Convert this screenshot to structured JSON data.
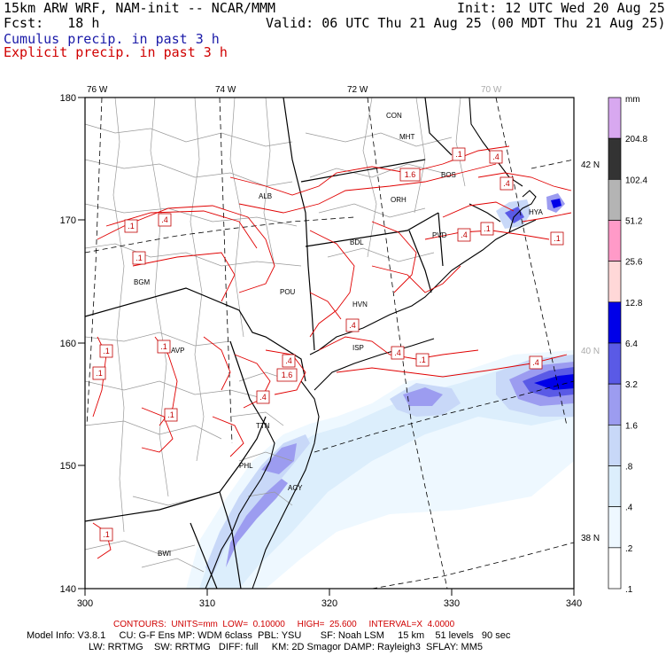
{
  "header": {
    "line1_left": "15km ARW WRF, NAM-init -- NCAR/MMM",
    "line1_right": "Init: 12 UTC Wed 20 Aug 25",
    "line2_left": "Fcst:   18 h",
    "line2_right": "Valid: 06 UTC Thu 21 Aug 25 (00 MDT Thu 21 Aug 25)",
    "line3": "Cumulus precip. in past 3 h",
    "line4": "Explicit precip. in past 3 h"
  },
  "map": {
    "top_lon_labels": [
      "76 W",
      "74 W",
      "72 W",
      "70 W"
    ],
    "right_lat_labels": [
      "42 N",
      "40 N",
      "38 N"
    ],
    "x_ticks": [
      "300",
      "310",
      "320",
      "330",
      "340"
    ],
    "y_ticks": [
      "180",
      "170",
      "160",
      "150",
      "140"
    ],
    "cities": [
      "CON",
      "MHT",
      "BOS",
      "ORH",
      "ALB",
      "BDL",
      "PVD",
      "BGM",
      "POU",
      "HVN",
      "AVP",
      "ISP",
      "TTN",
      "PHL",
      "ACY",
      "BWI",
      "HYA"
    ],
    "contour_labels": [
      ".1",
      ".4",
      ".1",
      ".4",
      "1.6",
      ".1",
      ".4",
      ".1",
      ".4",
      ".1",
      ".1",
      ".1",
      ".4",
      ".4",
      "1.6",
      ".4",
      ".1",
      ".4",
      ".1",
      ".4",
      ".1",
      ".1"
    ]
  },
  "legend": {
    "unit": "mm",
    "labels": [
      "204.8",
      "102.4",
      "51.2",
      "25.6",
      "12.8",
      "6.4",
      "3.2",
      "1.6",
      ".8",
      ".4",
      ".2",
      ".1"
    ],
    "colors": [
      "#d8a8f0",
      "#333333",
      "#b4b4b4",
      "#ff9ac8",
      "#ffd8d8",
      "#0000e8",
      "#5a5ae6",
      "#9c9cf0",
      "#c8d8f8",
      "#dceefc",
      "#eef8ff",
      "#ffffff"
    ]
  },
  "footer": {
    "contours": "CONTOURS:  UNITS=mm  LOW=  0.10000     HIGH=  25.600     INTERVAL=X  4.0000",
    "model_line1": "Model Info: V3.8.1     CU: G-F Ens MP: WDM 6class  PBL: YSU       SF: Noah LSM     15 km    51 levels   90 sec",
    "model_line2": "LW: RRTMG    SW: RRTMG   DIFF: full     KM: 2D Smagor DAMP: Rayleigh3  SFLAY: MM5"
  },
  "colors": {
    "cumulus": "#1a1aa8",
    "explicit": "#d00000"
  }
}
